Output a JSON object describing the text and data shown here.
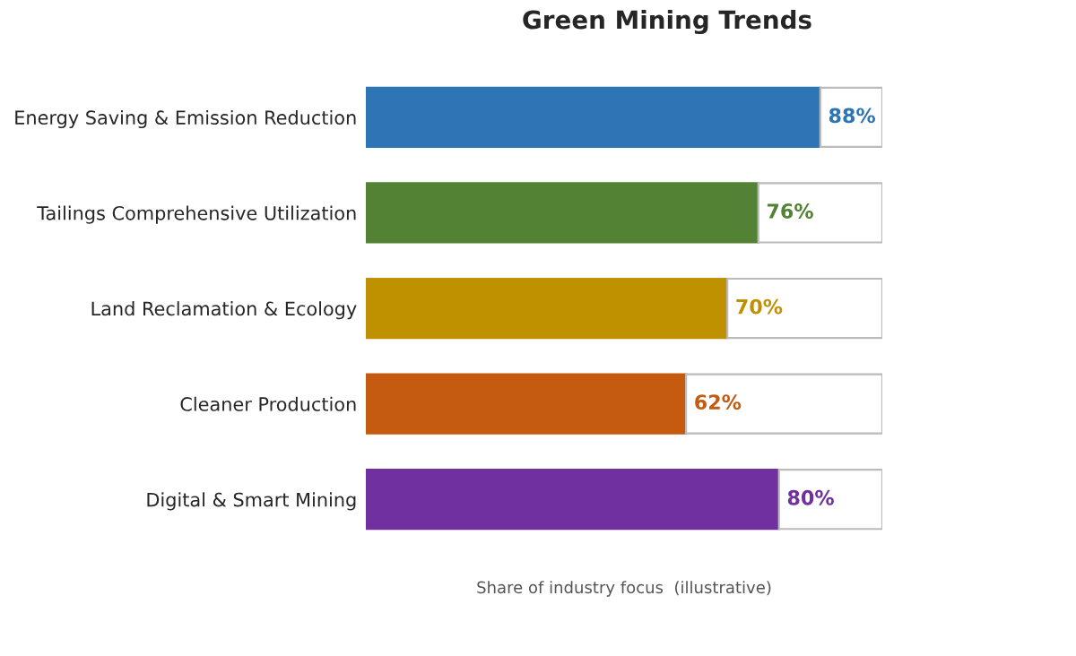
{
  "chart_data": {
    "type": "bar",
    "orientation": "horizontal",
    "stacked": true,
    "title": "Green Mining Trends",
    "xlabel": "Share of industry focus  (illustrative)",
    "categories": [
      "Energy Saving & Emission Reduction",
      "Tailings Comprehensive Utilization",
      "Land Reclamation & Ecology",
      "Cleaner Production",
      "Digital & Smart Mining"
    ],
    "series": [
      {
        "colors": [
          "#2e75b6",
          "#548235",
          "#bf9000",
          "#c55a11",
          "#7030a0"
        ],
        "values": [
          88,
          76,
          70,
          62,
          80
        ],
        "value_labels": [
          "88%",
          "76%",
          "70%",
          "62%",
          "80%"
        ]
      },
      {
        "color": "#ffffff",
        "values": [
          12,
          24,
          30,
          38,
          20
        ]
      }
    ],
    "xlim": [
      0,
      100
    ],
    "tick_labels": "y",
    "grid": false,
    "legend": false
  }
}
